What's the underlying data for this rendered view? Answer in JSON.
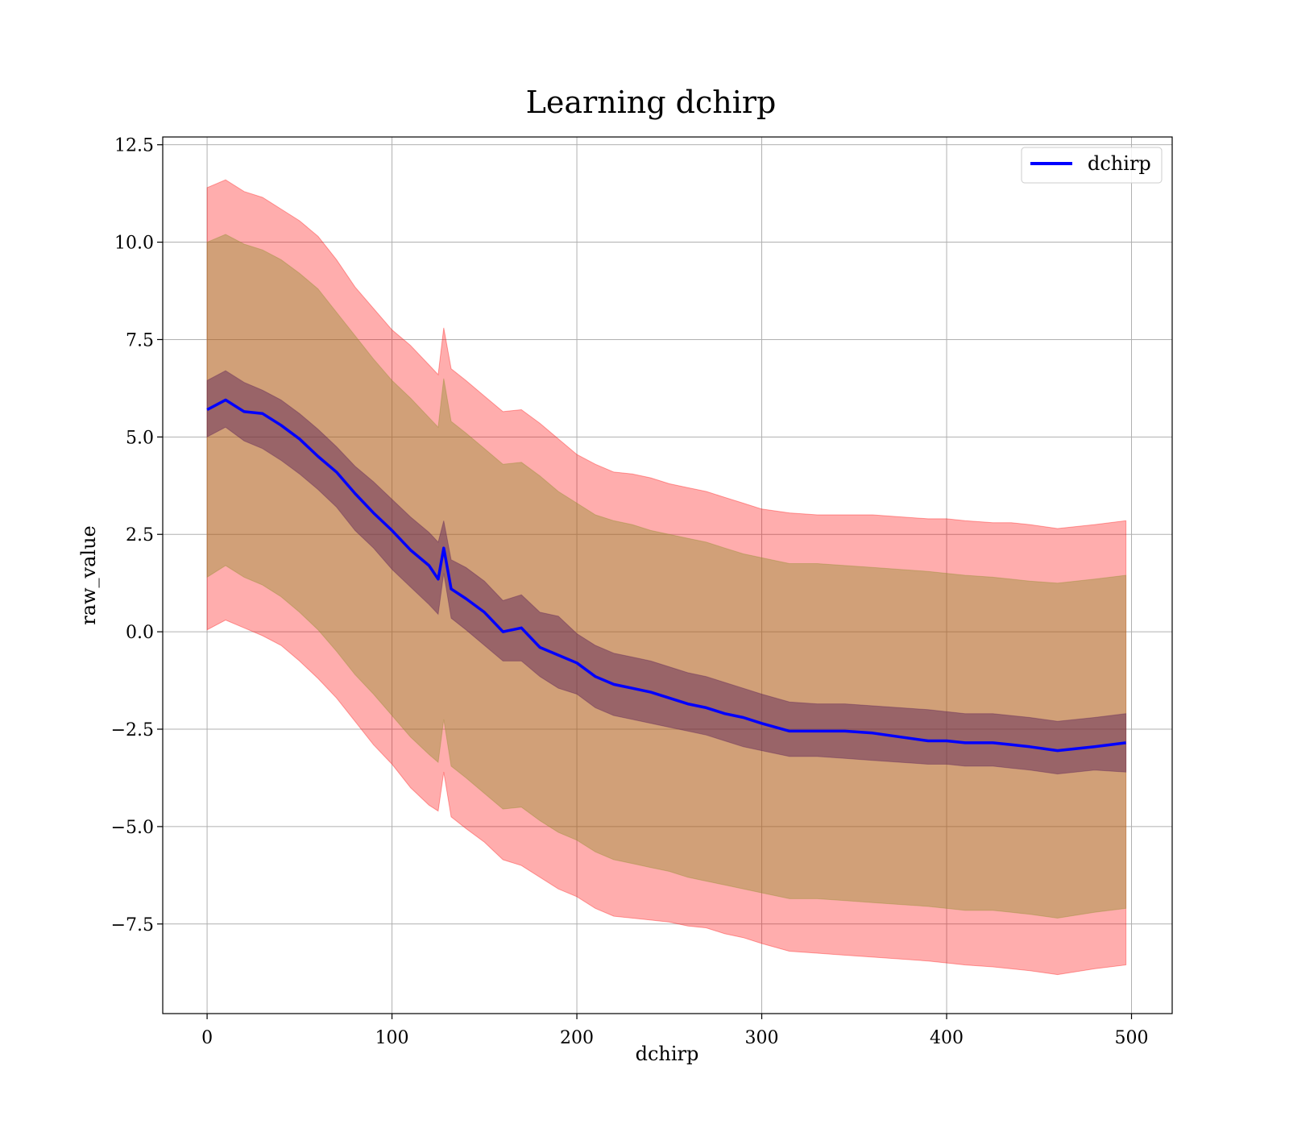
{
  "chart_data": {
    "type": "line",
    "title": "Learning dchirp",
    "xlabel": "dchirp",
    "ylabel": "raw_value",
    "xlim": [
      -24,
      522
    ],
    "ylim": [
      -9.8,
      12.7
    ],
    "xticks": [
      0,
      100,
      200,
      300,
      400,
      500
    ],
    "xtick_labels": [
      "0",
      "100",
      "200",
      "300",
      "400",
      "500"
    ],
    "yticks": [
      12.5,
      10.0,
      7.5,
      5.0,
      2.5,
      0.0,
      -2.5,
      -5.0,
      -7.5
    ],
    "ytick_labels": [
      "12.5",
      "10.0",
      "7.5",
      "5.0",
      "2.5",
      "0.0",
      "−2.5",
      "−5.0",
      "−7.5"
    ],
    "grid": true,
    "legend": {
      "position": "top-right",
      "entries": [
        "dchirp"
      ]
    },
    "colors": {
      "line": "#0000ff",
      "band_outer": "#ff0000",
      "band_middle": "#8c8c28",
      "band_inner": "#551a55"
    },
    "x": [
      0,
      10,
      20,
      30,
      40,
      50,
      60,
      70,
      80,
      90,
      100,
      110,
      120,
      125,
      128,
      132,
      140,
      150,
      160,
      170,
      180,
      190,
      200,
      210,
      220,
      230,
      240,
      250,
      260,
      270,
      280,
      290,
      300,
      315,
      330,
      345,
      360,
      375,
      390,
      400,
      410,
      425,
      435,
      445,
      460,
      480,
      497
    ],
    "series": [
      {
        "name": "dchirp",
        "values": [
          5.7,
          5.95,
          5.65,
          5.6,
          5.3,
          4.95,
          4.5,
          4.1,
          3.55,
          3.05,
          2.6,
          2.1,
          1.7,
          1.35,
          2.15,
          1.1,
          0.85,
          0.5,
          0.0,
          0.1,
          -0.4,
          -0.6,
          -0.8,
          -1.15,
          -1.35,
          -1.45,
          -1.55,
          -1.7,
          -1.85,
          -1.95,
          -2.1,
          -2.2,
          -2.35,
          -2.55,
          -2.55,
          -2.55,
          -2.6,
          -2.7,
          -2.8,
          -2.8,
          -2.85,
          -2.85,
          -2.9,
          -2.95,
          -3.05,
          -2.95,
          -2.85
        ]
      }
    ],
    "bands": [
      {
        "lower": [
          0.05,
          0.3,
          0.1,
          -0.1,
          -0.35,
          -0.75,
          -1.2,
          -1.7,
          -2.3,
          -2.9,
          -3.4,
          -4.0,
          -4.45,
          -4.6,
          -3.6,
          -4.75,
          -5.05,
          -5.4,
          -5.85,
          -6.0,
          -6.3,
          -6.6,
          -6.8,
          -7.1,
          -7.3,
          -7.35,
          -7.4,
          -7.45,
          -7.55,
          -7.6,
          -7.75,
          -7.85,
          -8.0,
          -8.2,
          -8.25,
          -8.3,
          -8.35,
          -8.4,
          -8.45,
          -8.5,
          -8.55,
          -8.6,
          -8.65,
          -8.7,
          -8.8,
          -8.65,
          -8.55
        ],
        "upper": [
          11.4,
          11.6,
          11.3,
          11.15,
          10.85,
          10.55,
          10.15,
          9.55,
          8.85,
          8.3,
          7.75,
          7.35,
          6.85,
          6.6,
          7.8,
          6.75,
          6.45,
          6.05,
          5.65,
          5.7,
          5.35,
          4.95,
          4.55,
          4.3,
          4.1,
          4.05,
          3.95,
          3.8,
          3.7,
          3.6,
          3.45,
          3.3,
          3.15,
          3.05,
          3.0,
          3.0,
          3.0,
          2.95,
          2.9,
          2.9,
          2.85,
          2.8,
          2.8,
          2.75,
          2.65,
          2.75,
          2.85
        ]
      },
      {
        "lower": [
          1.4,
          1.7,
          1.4,
          1.2,
          0.9,
          0.5,
          0.05,
          -0.5,
          -1.1,
          -1.6,
          -2.15,
          -2.7,
          -3.15,
          -3.35,
          -2.25,
          -3.45,
          -3.75,
          -4.15,
          -4.55,
          -4.5,
          -4.85,
          -5.15,
          -5.35,
          -5.65,
          -5.85,
          -5.95,
          -6.05,
          -6.15,
          -6.3,
          -6.4,
          -6.5,
          -6.6,
          -6.7,
          -6.85,
          -6.85,
          -6.9,
          -6.95,
          -7.0,
          -7.05,
          -7.1,
          -7.15,
          -7.15,
          -7.2,
          -7.25,
          -7.35,
          -7.2,
          -7.1
        ],
        "upper": [
          10.0,
          10.2,
          9.95,
          9.8,
          9.55,
          9.2,
          8.8,
          8.2,
          7.6,
          7.0,
          6.45,
          6.0,
          5.5,
          5.25,
          6.5,
          5.4,
          5.1,
          4.7,
          4.3,
          4.35,
          4.0,
          3.6,
          3.3,
          3.0,
          2.85,
          2.75,
          2.6,
          2.5,
          2.4,
          2.3,
          2.15,
          2.0,
          1.9,
          1.75,
          1.75,
          1.7,
          1.65,
          1.6,
          1.55,
          1.5,
          1.45,
          1.4,
          1.35,
          1.3,
          1.25,
          1.35,
          1.45
        ]
      },
      {
        "lower": [
          5.0,
          5.25,
          4.9,
          4.7,
          4.4,
          4.05,
          3.65,
          3.2,
          2.6,
          2.15,
          1.6,
          1.15,
          0.7,
          0.45,
          1.5,
          0.35,
          0.05,
          -0.35,
          -0.75,
          -0.75,
          -1.15,
          -1.45,
          -1.6,
          -1.95,
          -2.15,
          -2.25,
          -2.35,
          -2.45,
          -2.55,
          -2.65,
          -2.8,
          -2.95,
          -3.05,
          -3.2,
          -3.2,
          -3.25,
          -3.3,
          -3.35,
          -3.4,
          -3.4,
          -3.45,
          -3.45,
          -3.5,
          -3.55,
          -3.65,
          -3.55,
          -3.6
        ],
        "upper": [
          6.45,
          6.7,
          6.4,
          6.2,
          5.95,
          5.6,
          5.2,
          4.75,
          4.25,
          3.85,
          3.4,
          2.95,
          2.55,
          2.3,
          2.85,
          1.85,
          1.65,
          1.3,
          0.8,
          0.95,
          0.5,
          0.4,
          -0.05,
          -0.35,
          -0.55,
          -0.65,
          -0.75,
          -0.9,
          -1.05,
          -1.15,
          -1.3,
          -1.45,
          -1.6,
          -1.8,
          -1.85,
          -1.85,
          -1.9,
          -1.95,
          -2.0,
          -2.05,
          -2.1,
          -2.1,
          -2.15,
          -2.2,
          -2.3,
          -2.2,
          -2.1
        ]
      }
    ]
  }
}
